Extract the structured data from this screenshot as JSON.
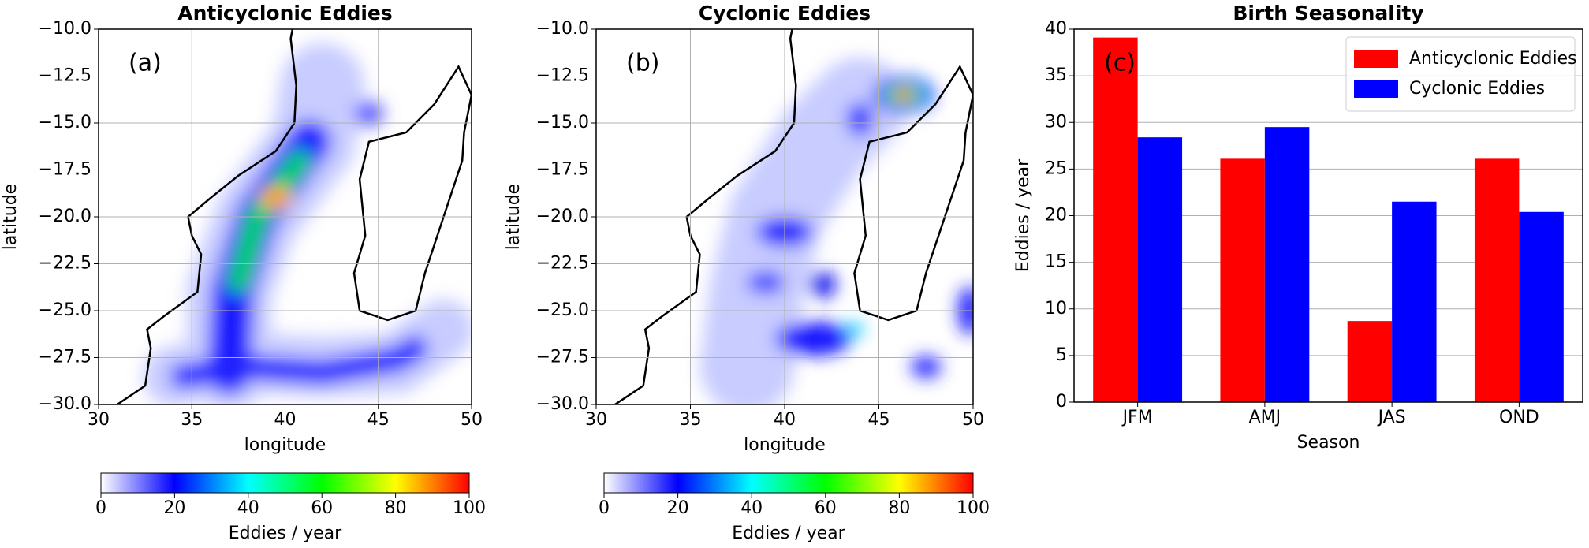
{
  "chart_data": [
    {
      "type": "map",
      "title": "Anticyclonic Eddies",
      "panel_label": "(a)",
      "xlabel": "longitude",
      "ylabel": "latitude",
      "xlim": [
        30,
        50
      ],
      "ylim": [
        -30,
        -10
      ],
      "xticks": [
        30,
        35,
        40,
        45,
        50
      ],
      "yticks": [
        {
          "value": -30,
          "label": "−30.0"
        },
        {
          "value": -27.5,
          "label": "−27.5"
        },
        {
          "value": -25,
          "label": "−25.0"
        },
        {
          "value": -22.5,
          "label": "−22.5"
        },
        {
          "value": -20,
          "label": "−20.0"
        },
        {
          "value": -17.5,
          "label": "−17.5"
        },
        {
          "value": -15,
          "label": "−15.0"
        },
        {
          "value": -12.5,
          "label": "−12.5"
        },
        {
          "value": -10,
          "label": "−10.0"
        }
      ],
      "grid": true,
      "colorbar": {
        "label": "Eddies / year",
        "clim": [
          0,
          100
        ],
        "ticks": [
          0,
          20,
          40,
          60,
          80,
          100
        ],
        "colormap": [
          "#ffffff",
          "#0000ff",
          "#00ffff",
          "#00ff00",
          "#ffff00",
          "#ff0000"
        ]
      }
    },
    {
      "type": "map",
      "title": "Cyclonic Eddies",
      "panel_label": "(b)",
      "xlabel": "longitude",
      "ylabel": "latitude",
      "xlim": [
        30,
        50
      ],
      "ylim": [
        -30,
        -10
      ],
      "xticks": [
        30,
        35,
        40,
        45,
        50
      ],
      "yticks": [
        {
          "value": -30,
          "label": "−30.0"
        },
        {
          "value": -27.5,
          "label": "−27.5"
        },
        {
          "value": -25,
          "label": "−25.0"
        },
        {
          "value": -22.5,
          "label": "−22.5"
        },
        {
          "value": -20,
          "label": "−20.0"
        },
        {
          "value": -17.5,
          "label": "−17.5"
        },
        {
          "value": -15,
          "label": "−15.0"
        },
        {
          "value": -12.5,
          "label": "−12.5"
        },
        {
          "value": -10,
          "label": "−10.0"
        }
      ],
      "grid": true,
      "colorbar": {
        "label": "Eddies / year",
        "clim": [
          0,
          100
        ],
        "ticks": [
          0,
          20,
          40,
          60,
          80,
          100
        ],
        "colormap": [
          "#ffffff",
          "#0000ff",
          "#00ffff",
          "#00ff00",
          "#ffff00",
          "#ff0000"
        ]
      }
    },
    {
      "type": "bar",
      "title": "Birth Seasonality",
      "panel_label": "(c)",
      "xlabel": "Season",
      "ylabel": "Eddies / year",
      "categories": [
        "JFM",
        "AMJ",
        "JAS",
        "OND"
      ],
      "series": [
        {
          "name": "Anticyclonic Eddies",
          "color": "#ff0000",
          "values": [
            39.1,
            26.1,
            8.7,
            26.1
          ]
        },
        {
          "name": "Cyclonic Eddies",
          "color": "#0000ff",
          "values": [
            28.4,
            29.5,
            21.5,
            20.4
          ]
        }
      ],
      "ylim": [
        0,
        40
      ],
      "yticks": [
        0,
        5,
        10,
        15,
        20,
        25,
        30,
        35,
        40
      ],
      "grid": true,
      "legend": "upper right"
    }
  ]
}
